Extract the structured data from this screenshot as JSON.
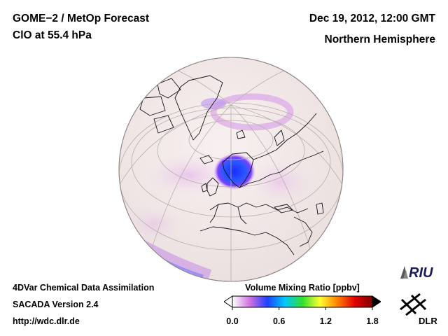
{
  "header": {
    "title_left_1": "GOME−2 / MetOp Forecast",
    "title_left_2": "ClO at 55.4 hPa",
    "title_right_1": "Dec 19, 2012, 12:00 GMT",
    "title_right_2": "Northern Hemisphere"
  },
  "footer": {
    "line1": "4DVar Chemical Data Assimilation",
    "line2": "SACADA Version 2.4",
    "line3": "http://wdc.dlr.de"
  },
  "colorbar": {
    "title": "Volume Mixing Ratio [ppbv]",
    "ticks": [
      "0.0",
      "0.6",
      "1.2",
      "1.8"
    ],
    "tick_values": [
      0.0,
      0.6,
      1.2,
      1.8
    ],
    "range": [
      0.0,
      1.8
    ],
    "colors": [
      "#ffffff",
      "#d070e0",
      "#2040ff",
      "#00c8ff",
      "#30e030",
      "#ffff30",
      "#ff8000",
      "#e00000",
      "#800000"
    ]
  },
  "logos": {
    "riu": "RIU",
    "dlr": "DLR"
  },
  "colors": {
    "ocean_bg": "#f4ecec",
    "land_outline": "#111111",
    "grid": "#b0a8a8",
    "low_clo": "#e8a8e8",
    "high_clo": "#2a4cff"
  }
}
